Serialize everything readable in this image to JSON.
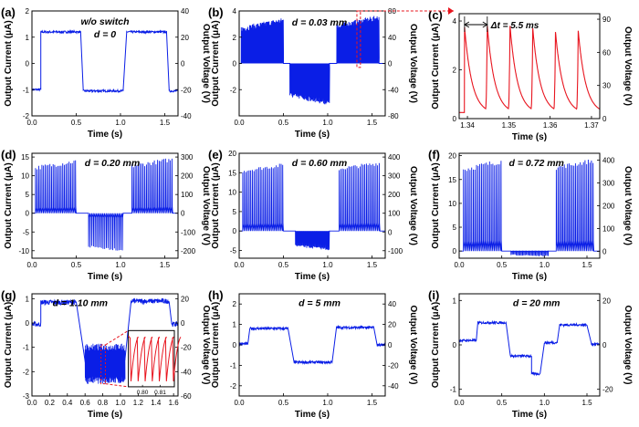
{
  "figure": {
    "trace_color": "#0a1ee6",
    "zoom_color": "#e8141e",
    "inset_color": "#e8141e"
  },
  "chart_data": [
    {
      "id": "a",
      "panel_label": "(a)",
      "type": "line",
      "mode": "square",
      "condition": [
        "w/o switch",
        "d = 0"
      ],
      "xlabel": "Time (s)",
      "ylabel": "Output Current (μA)",
      "y2label": "Output Voltage (V)",
      "xlim": [
        0,
        1.65
      ],
      "xticks": [
        "0.0",
        "0.5",
        "1.0",
        "1.5"
      ],
      "xtick_values": [
        0,
        0.5,
        1.0,
        1.5
      ],
      "ylim": [
        -2,
        2
      ],
      "yticks": [
        "-2",
        "-1",
        "0",
        "1",
        "2"
      ],
      "ytick_values": [
        -2,
        -1,
        0,
        1,
        2
      ],
      "y2lim": [
        -40,
        40
      ],
      "y2ticks": [
        "-40",
        "-20",
        "0",
        "20",
        "40"
      ],
      "y2tick_values": [
        -40,
        -20,
        0,
        20,
        40
      ],
      "segments": [
        {
          "x0": 0.0,
          "x1": 0.1,
          "level": -1.0
        },
        {
          "x0": 0.1,
          "x1": 0.55,
          "level": 1.2
        },
        {
          "x0": 0.58,
          "x1": 1.03,
          "level": -1.05
        },
        {
          "x0": 1.07,
          "x1": 1.52,
          "level": 1.2
        },
        {
          "x0": 1.55,
          "x1": 1.65,
          "level": -1.05
        }
      ],
      "noise": 0.04
    },
    {
      "id": "b",
      "panel_label": "(b)",
      "type": "line",
      "mode": "pulse",
      "condition": [
        "d = 0.03 mm"
      ],
      "xlabel": "Time (s)",
      "ylabel": "Output Current (μA)",
      "y2label": "Output Voltage (V)",
      "xlim": [
        0,
        1.65
      ],
      "xticks": [
        "0.0",
        "0.5",
        "1.0",
        "1.5"
      ],
      "xtick_values": [
        0,
        0.5,
        1.0,
        1.5
      ],
      "ylim": [
        -4,
        4
      ],
      "yticks": [
        "-2",
        "0",
        "2",
        "4"
      ],
      "ytick_values": [
        -2,
        0,
        2,
        4
      ],
      "y2lim": [
        -80,
        80
      ],
      "y2ticks": [
        "-80",
        "-40",
        "0",
        "40",
        "80"
      ],
      "y2tick_values": [
        -80,
        -40,
        0,
        40,
        80
      ],
      "segments": [
        {
          "x0": 0.02,
          "x1": 0.5,
          "peak_min": 2.4,
          "peak_max": 3.5,
          "count": 96
        },
        {
          "x0": 0.57,
          "x1": 1.02,
          "peak_min": -2.2,
          "peak_max": -3.2,
          "count": 90
        },
        {
          "x0": 1.1,
          "x1": 1.58,
          "peak_min": 2.6,
          "peak_max": 3.7,
          "count": 96
        }
      ],
      "zoom_region": {
        "x0": 1.33,
        "x1": 1.37,
        "y0": -0.3,
        "y1": 4.0
      }
    },
    {
      "id": "c",
      "panel_label": "(c)",
      "type": "line",
      "mode": "decay",
      "annotation": "Δt = 5.5 ms",
      "xlabel": "Time (s)",
      "ylabel": "Output Current (μA)",
      "y2label": "Output Voltage (V)",
      "xlim": [
        1.338,
        1.372
      ],
      "xticks": [
        "1.34",
        "1.35",
        "1.36",
        "1.37"
      ],
      "xtick_values": [
        1.34,
        1.35,
        1.36,
        1.37
      ],
      "ylim": [
        0,
        4.3
      ],
      "yticks": [
        "0",
        "2",
        "4"
      ],
      "ytick_values": [
        0,
        2,
        4
      ],
      "y2lim": [
        0,
        95
      ],
      "y2ticks": [
        "0",
        "30",
        "60",
        "90"
      ],
      "y2tick_values": [
        0,
        30,
        60,
        90
      ],
      "peaks_x": [
        1.3393,
        1.3448,
        1.3503,
        1.3558,
        1.3613,
        1.3668
      ],
      "peak_values": [
        3.75,
        3.8,
        3.8,
        3.7,
        3.55,
        3.6
      ],
      "baseline": 0.2,
      "decay_const": 0.0018
    },
    {
      "id": "d",
      "panel_label": "(d)",
      "type": "line",
      "mode": "pulse",
      "condition": [
        "d = 0.20 mm"
      ],
      "xlabel": "Time (s)",
      "ylabel": "Output Current (μA)",
      "y2label": "Output Voltage (V)",
      "xlim": [
        0,
        1.65
      ],
      "xticks": [
        "0.0",
        "0.5",
        "1.0",
        "1.5"
      ],
      "xtick_values": [
        0,
        0.5,
        1.0,
        1.5
      ],
      "ylim": [
        -12,
        16
      ],
      "yticks": [
        "-10",
        "-5",
        "0",
        "5",
        "10",
        "15"
      ],
      "ytick_values": [
        -10,
        -5,
        0,
        5,
        10,
        15
      ],
      "y2lim": [
        -240,
        320
      ],
      "y2ticks": [
        "-200",
        "-100",
        "0",
        "100",
        "200",
        "300"
      ],
      "y2tick_values": [
        -200,
        -100,
        0,
        100,
        200,
        300
      ],
      "segments": [
        {
          "x0": 0.03,
          "x1": 0.5,
          "peak_min": 11.5,
          "peak_max": 14.5,
          "count": 26
        },
        {
          "x0": 0.63,
          "x1": 1.03,
          "peak_min": -8.5,
          "peak_max": -10.2,
          "count": 22
        },
        {
          "x0": 1.12,
          "x1": 1.59,
          "peak_min": 12,
          "peak_max": 15,
          "count": 26
        }
      ]
    },
    {
      "id": "e",
      "panel_label": "(e)",
      "type": "line",
      "mode": "pulse",
      "condition": [
        "d = 0.60 mm"
      ],
      "xlabel": "Time (s)",
      "ylabel": "Output Current (μA)",
      "y2label": "Output Voltage (V)",
      "xlim": [
        0,
        1.65
      ],
      "xticks": [
        "0.0",
        "0.5",
        "1.0",
        "1.5"
      ],
      "xtick_values": [
        0,
        0.5,
        1.0,
        1.5
      ],
      "ylim": [
        -7,
        20
      ],
      "yticks": [
        "-5",
        "0",
        "5",
        "10",
        "15",
        "20"
      ],
      "ytick_values": [
        -5,
        0,
        5,
        10,
        15,
        20
      ],
      "y2lim": [
        -140,
        420
      ],
      "y2ticks": [
        "-100",
        "0",
        "100",
        "200",
        "300",
        "400"
      ],
      "y2tick_values": [
        -100,
        0,
        100,
        200,
        300,
        400
      ],
      "segments": [
        {
          "x0": 0.03,
          "x1": 0.5,
          "peak_min": 15,
          "peak_max": 17.5,
          "count": 26
        },
        {
          "x0": 0.63,
          "x1": 1.02,
          "peak_min": -3.5,
          "peak_max": -5,
          "count": 40
        },
        {
          "x0": 1.12,
          "x1": 1.59,
          "peak_min": 15.5,
          "peak_max": 18,
          "count": 26
        }
      ]
    },
    {
      "id": "f",
      "panel_label": "(f)",
      "type": "line",
      "mode": "pulse",
      "condition": [
        "d = 0.72 mm"
      ],
      "xlabel": "Time (s)",
      "ylabel": "Output Current (μA)",
      "y2label": "Output Voltage (V)",
      "xlim": [
        0,
        1.65
      ],
      "xticks": [
        "0.0",
        "0.5",
        "1.0",
        "1.5"
      ],
      "xtick_values": [
        0,
        0.5,
        1.0,
        1.5
      ],
      "ylim": [
        -1.5,
        20.5
      ],
      "yticks": [
        "0",
        "5",
        "10",
        "15",
        "20"
      ],
      "ytick_values": [
        0,
        5,
        10,
        15,
        20
      ],
      "y2lim": [
        -30,
        430
      ],
      "y2ticks": [
        "0",
        "100",
        "200",
        "300",
        "400"
      ],
      "y2tick_values": [
        0,
        100,
        200,
        300,
        400
      ],
      "segments": [
        {
          "x0": 0.04,
          "x1": 0.5,
          "peak_min": 16.5,
          "peak_max": 19.5,
          "count": 24
        },
        {
          "x0": 0.6,
          "x1": 1.05,
          "peak_min": -0.7,
          "peak_max": -1.2,
          "count": 30
        },
        {
          "x0": 1.13,
          "x1": 1.58,
          "peak_min": 17,
          "peak_max": 19.5,
          "count": 24
        }
      ]
    },
    {
      "id": "g",
      "panel_label": "(g)",
      "type": "line",
      "mode": "square",
      "condition": [
        "d = 1.10 mm"
      ],
      "xlabel": "Time (s)",
      "ylabel": "Output Current (μA)",
      "y2label": "Output Voltage (V)",
      "xlim": [
        0,
        1.65
      ],
      "xticks": [
        "0.0",
        "0.2",
        "0.4",
        "0.6",
        "0.8",
        "1.0",
        "1.2",
        "1.4",
        "1.6"
      ],
      "xtick_values": [
        0,
        0.2,
        0.4,
        0.6,
        0.8,
        1.0,
        1.2,
        1.4,
        1.6
      ],
      "ylim": [
        -3,
        1.2
      ],
      "yticks": [
        "-3",
        "-2",
        "-1",
        "0",
        "1"
      ],
      "ytick_values": [
        -3,
        -2,
        -1,
        0,
        1
      ],
      "y2lim": [
        -60,
        24
      ],
      "y2ticks": [
        "-60",
        "-40",
        "-20",
        "0",
        "20"
      ],
      "y2tick_values": [
        -60,
        -40,
        -20,
        0,
        20
      ],
      "segments": [
        {
          "x0": 0.0,
          "x1": 0.1,
          "level": -0.05
        },
        {
          "x0": 0.1,
          "x1": 0.5,
          "level": 0.85
        },
        {
          "x0": 0.6,
          "x1": 1.05,
          "level": -1.6
        },
        {
          "x0": 1.12,
          "x1": 1.55,
          "level": 0.9
        },
        {
          "x0": 1.58,
          "x1": 1.65,
          "level": -0.05
        }
      ],
      "noise": 0.1,
      "burst": {
        "x0": 0.6,
        "x1": 1.05,
        "low": -2.35,
        "high": -1.0
      },
      "inset": {
        "xticks": [
          "0.80",
          "0.81"
        ],
        "xtick_values": [
          0.8,
          0.81
        ],
        "xlim": [
          0.792,
          0.818
        ],
        "peaks_x": [
          0.7935,
          0.7975,
          0.8015,
          0.8055,
          0.8095,
          0.8135,
          0.8175
        ]
      }
    },
    {
      "id": "h",
      "panel_label": "(h)",
      "type": "line",
      "mode": "square",
      "condition": [
        "d = 5 mm"
      ],
      "xlabel": "Time (s)",
      "ylabel": "Output Current (μA)",
      "y2label": "Output Voltage (V)",
      "xlim": [
        0,
        1.65
      ],
      "xticks": [
        "0.0",
        "0.5",
        "1.0",
        "1.5"
      ],
      "xtick_values": [
        0,
        0.5,
        1.0,
        1.5
      ],
      "ylim": [
        -2.5,
        2.5
      ],
      "yticks": [
        "-2",
        "-1",
        "0",
        "1",
        "2"
      ],
      "ytick_values": [
        -2,
        -1,
        0,
        1,
        2
      ],
      "y2lim": [
        -50,
        50
      ],
      "y2ticks": [
        "-40",
        "-20",
        "0",
        "20",
        "40"
      ],
      "y2tick_values": [
        -40,
        -20,
        0,
        20,
        40
      ],
      "segments": [
        {
          "x0": 0.0,
          "x1": 0.1,
          "level": 0.05
        },
        {
          "x0": 0.12,
          "x1": 0.55,
          "level": 0.8
        },
        {
          "x0": 0.62,
          "x1": 1.05,
          "level": -0.85
        },
        {
          "x0": 1.1,
          "x1": 1.52,
          "level": 0.85
        },
        {
          "x0": 1.56,
          "x1": 1.65,
          "level": 0.0
        }
      ],
      "noise": 0.06
    },
    {
      "id": "i",
      "panel_label": "(i)",
      "type": "line",
      "mode": "square",
      "condition": [
        "d = 20 mm"
      ],
      "xlabel": "Time (s)",
      "ylabel": "Output Current (μA)",
      "y2label": "Output Voltage (V)",
      "xlim": [
        0,
        1.65
      ],
      "xticks": [
        "0.0",
        "0.5",
        "1.0",
        "1.5"
      ],
      "xtick_values": [
        0,
        0.5,
        1.0,
        1.5
      ],
      "ylim": [
        -1.15,
        1.15
      ],
      "yticks": [
        "-1",
        "0",
        "1"
      ],
      "ytick_values": [
        -1,
        0,
        1
      ],
      "y2lim": [
        -23,
        23
      ],
      "y2ticks": [
        "-20",
        "0",
        "20"
      ],
      "y2tick_values": [
        -20,
        0,
        20
      ],
      "segments": [
        {
          "x0": 0.0,
          "x1": 0.2,
          "level": 0.1
        },
        {
          "x0": 0.22,
          "x1": 0.55,
          "level": 0.5
        },
        {
          "x0": 0.6,
          "x1": 0.85,
          "level": -0.25
        },
        {
          "x0": 0.85,
          "x1": 0.95,
          "level": -0.65
        },
        {
          "x0": 1.0,
          "x1": 1.15,
          "level": 0.05
        },
        {
          "x0": 1.18,
          "x1": 1.5,
          "level": 0.45
        },
        {
          "x0": 1.55,
          "x1": 1.65,
          "level": 0.02
        }
      ],
      "noise": 0.025
    }
  ]
}
